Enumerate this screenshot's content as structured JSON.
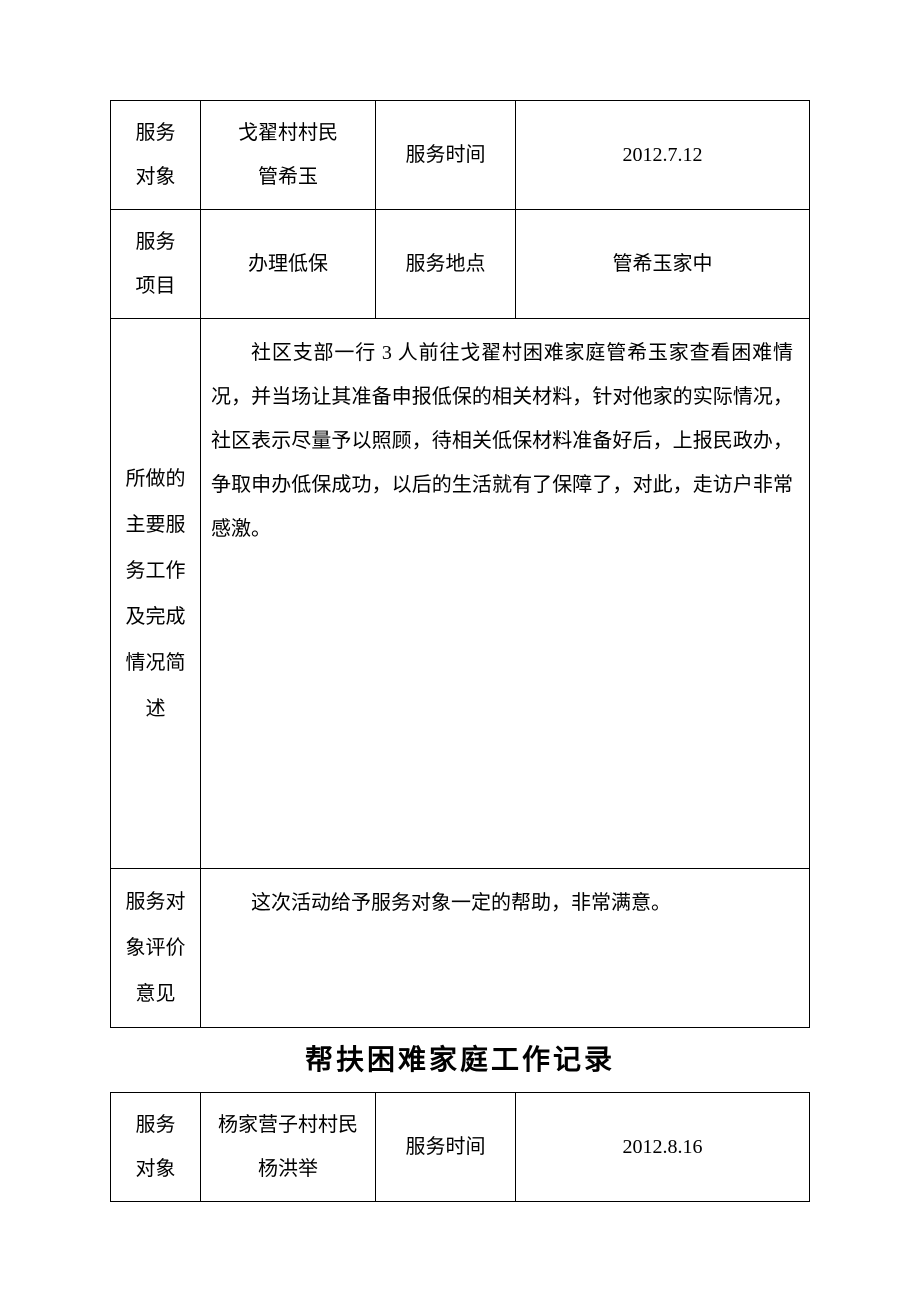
{
  "table1": {
    "labels": {
      "serviceTarget": "服务\n对象",
      "serviceTime": "服务时间",
      "serviceItem": "服务\n项目",
      "serviceLocation": "服务地点",
      "workDesc": "所做的主要服务工作及完成情况简述",
      "evalLabel": "服务对象评价意见"
    },
    "values": {
      "targetName": "戈翟村村民\n管希玉",
      "time": "2012.7.12",
      "item": "办理低保",
      "location": "管希玉家中",
      "body": "社区支部一行 3 人前往戈翟村困难家庭管希玉家查看困难情况，并当场让其准备申报低保的相关材料，针对他家的实际情况，社区表示尽量予以照顾，待相关低保材料准备好后，上报民政办，争取申办低保成功，以后的生活就有了保障了，对此，走访户非常感激。",
      "evaluation": "这次活动给予服务对象一定的帮助，非常满意。"
    }
  },
  "heading2": "帮扶困难家庭工作记录",
  "table2": {
    "labels": {
      "serviceTarget": "服务\n对象",
      "serviceTime": "服务时间"
    },
    "values": {
      "targetName": "杨家营子村村民\n杨洪举",
      "time": "2012.8.16"
    }
  },
  "style": {
    "fontFamily": "SimSun",
    "headingFont": "SimHei",
    "fontSize": 20,
    "headingSize": 28,
    "borderColor": "#000000",
    "background": "#ffffff",
    "textColor": "#000000",
    "lineHeight": 2.2
  }
}
